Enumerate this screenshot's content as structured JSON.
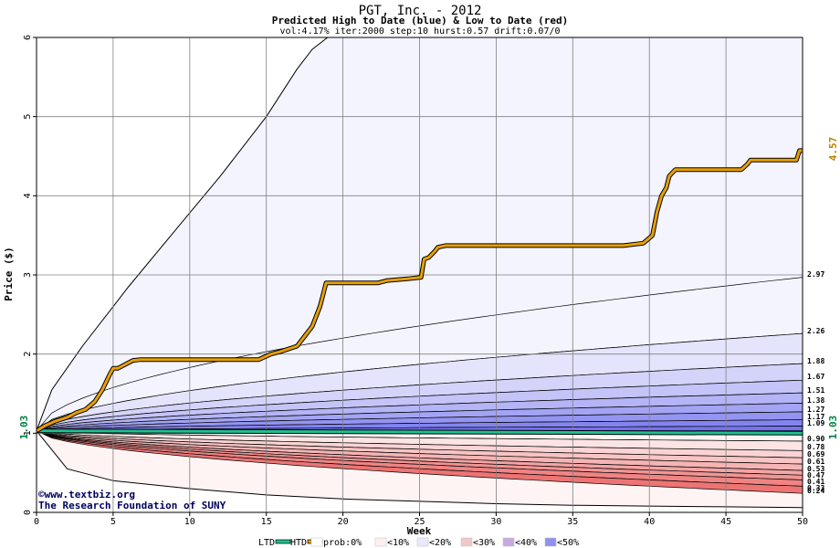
{
  "chart_data": {
    "type": "area",
    "title": "PGT, Inc. - 2012",
    "subtitle": "Predicted High to Date (blue) &  Low to Date (red)",
    "params": "vol:4.17% iter:2000 step:10 hurst:0.57 drift:0.07/0",
    "xlabel": "Week",
    "ylabel": "Price ($)",
    "xlim": [
      0,
      50
    ],
    "ylim": [
      0,
      6
    ],
    "x_ticks": [
      0,
      5,
      10,
      15,
      20,
      25,
      30,
      35,
      40,
      45,
      50
    ],
    "y_ticks": [
      0,
      1,
      2,
      3,
      4,
      5,
      6
    ],
    "grid": true,
    "start_price": "1.03",
    "current_high": "4.57",
    "credit_line1": "©www.textbiz.org",
    "credit_line2": "The Research Foundation of SUNY",
    "high_levels": [
      "2.97",
      "2.26",
      "1.88",
      "1.67",
      "1.51",
      "1.38",
      "1.27",
      "1.17",
      "1.09"
    ],
    "high_values": [
      2.97,
      2.26,
      1.88,
      1.67,
      1.51,
      1.38,
      1.27,
      1.17,
      1.09
    ],
    "low_levels": [
      "0.90",
      "0.78",
      "0.69",
      "0.61",
      "0.53",
      "0.47",
      "0.41",
      "0.33",
      "0.24"
    ],
    "low_values": [
      0.9,
      0.78,
      0.69,
      0.61,
      0.53,
      0.47,
      0.41,
      0.33,
      0.24
    ],
    "upper_envelope": {
      "x": [
        0,
        1,
        3,
        6,
        9,
        12,
        15,
        17,
        18,
        19
      ],
      "y": [
        1.03,
        1.55,
        2.1,
        2.85,
        3.55,
        4.25,
        5.0,
        5.6,
        5.85,
        6.0
      ]
    },
    "lower_envelope": {
      "x": [
        0,
        2,
        5,
        10,
        15,
        20,
        25,
        30,
        35,
        40,
        45,
        50
      ],
      "y": [
        1.03,
        0.55,
        0.4,
        0.3,
        0.22,
        0.17,
        0.14,
        0.11,
        0.09,
        0.08,
        0.07,
        0.06
      ]
    },
    "high_to_date": {
      "x": [
        0,
        0.6,
        1.2,
        2,
        2.6,
        3.2,
        3.8,
        4.3,
        4.8,
        5,
        5.3,
        5.6,
        6.3,
        6.8,
        14.5,
        15.3,
        15.9,
        17,
        17.4,
        18,
        18.5,
        18.7,
        18.9,
        22.3,
        22.9,
        24.2,
        25.1,
        25.3,
        25.6,
        26,
        26.2,
        26.7,
        38.3,
        39.6,
        40.2,
        40.5,
        40.8,
        41.1,
        41.3,
        41.7,
        46,
        46.4,
        46.6,
        49.6,
        49.8,
        50
      ],
      "y": [
        1.03,
        1.1,
        1.15,
        1.2,
        1.26,
        1.3,
        1.4,
        1.55,
        1.75,
        1.82,
        1.82,
        1.85,
        1.92,
        1.93,
        1.93,
        2.0,
        2.03,
        2.1,
        2.2,
        2.35,
        2.6,
        2.75,
        2.9,
        2.9,
        2.93,
        2.95,
        2.97,
        3.2,
        3.22,
        3.3,
        3.35,
        3.37,
        3.37,
        3.4,
        3.5,
        3.8,
        4.0,
        4.1,
        4.25,
        4.33,
        4.33,
        4.4,
        4.45,
        4.45,
        4.57,
        4.57
      ]
    },
    "ltd_line": {
      "x": [
        0,
        50
      ],
      "y": [
        1.03,
        1.0
      ]
    },
    "band_colors": {
      "high": [
        "#f4f4ff",
        "#e4e4fc",
        "#d4d4fa",
        "#c4c4f8",
        "#b4b4f6",
        "#a4a4f4",
        "#9494f2",
        "#8484f0",
        "#7474ee"
      ],
      "low": [
        "#fff4f4",
        "#fce4e4",
        "#fad4d4",
        "#f8c4c4",
        "#f6b4b4",
        "#f4a4a4",
        "#f29494",
        "#f08484",
        "#ee7474"
      ]
    },
    "series_colors": {
      "ltd": "#20c090",
      "htd": "#e8a000",
      "accent_high": "#c08000",
      "accent_start": "#008040"
    },
    "legend": {
      "position": "bottom",
      "items": [
        "LTD",
        "HTD",
        "prob:0%",
        "<10%",
        "<20%",
        "<30%",
        "<40%",
        "<50%"
      ],
      "item_colors": [
        "#20c090",
        "#e8a000",
        "#ffffff",
        "#fff0f0",
        "#e8e8ff",
        "#f0c8c8",
        "#c8a8e0",
        "#9090f0"
      ]
    }
  }
}
